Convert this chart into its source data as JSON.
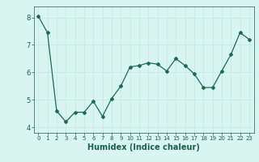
{
  "x": [
    0,
    1,
    2,
    3,
    4,
    5,
    6,
    7,
    8,
    9,
    10,
    11,
    12,
    13,
    14,
    15,
    16,
    17,
    18,
    19,
    20,
    21,
    22,
    23
  ],
  "y": [
    8.05,
    7.45,
    4.6,
    4.2,
    4.55,
    4.55,
    4.95,
    4.4,
    5.05,
    5.5,
    6.2,
    6.25,
    6.35,
    6.3,
    6.05,
    6.5,
    6.25,
    5.95,
    5.45,
    5.45,
    6.05,
    6.65,
    7.45,
    7.2
  ],
  "line_color": "#1a6b5a",
  "marker": "D",
  "markersize": 2.0,
  "linewidth": 0.9,
  "xlabel": "Humidex (Indice chaleur)",
  "xlabel_fontsize": 7,
  "xlabel_color": "#1a5f50",
  "tick_color": "#1a5f50",
  "background_color": "#d8f5f0",
  "grid_color": "#c0e8e0",
  "ylim": [
    3.8,
    8.4
  ],
  "xlim": [
    -0.5,
    23.5
  ],
  "yticks": [
    4,
    5,
    6,
    7,
    8
  ],
  "xticks": [
    0,
    1,
    2,
    3,
    4,
    5,
    6,
    7,
    8,
    9,
    10,
    11,
    12,
    13,
    14,
    15,
    16,
    17,
    18,
    19,
    20,
    21,
    22,
    23
  ],
  "tick_fontsize_x": 5.0,
  "tick_fontsize_y": 6.0
}
